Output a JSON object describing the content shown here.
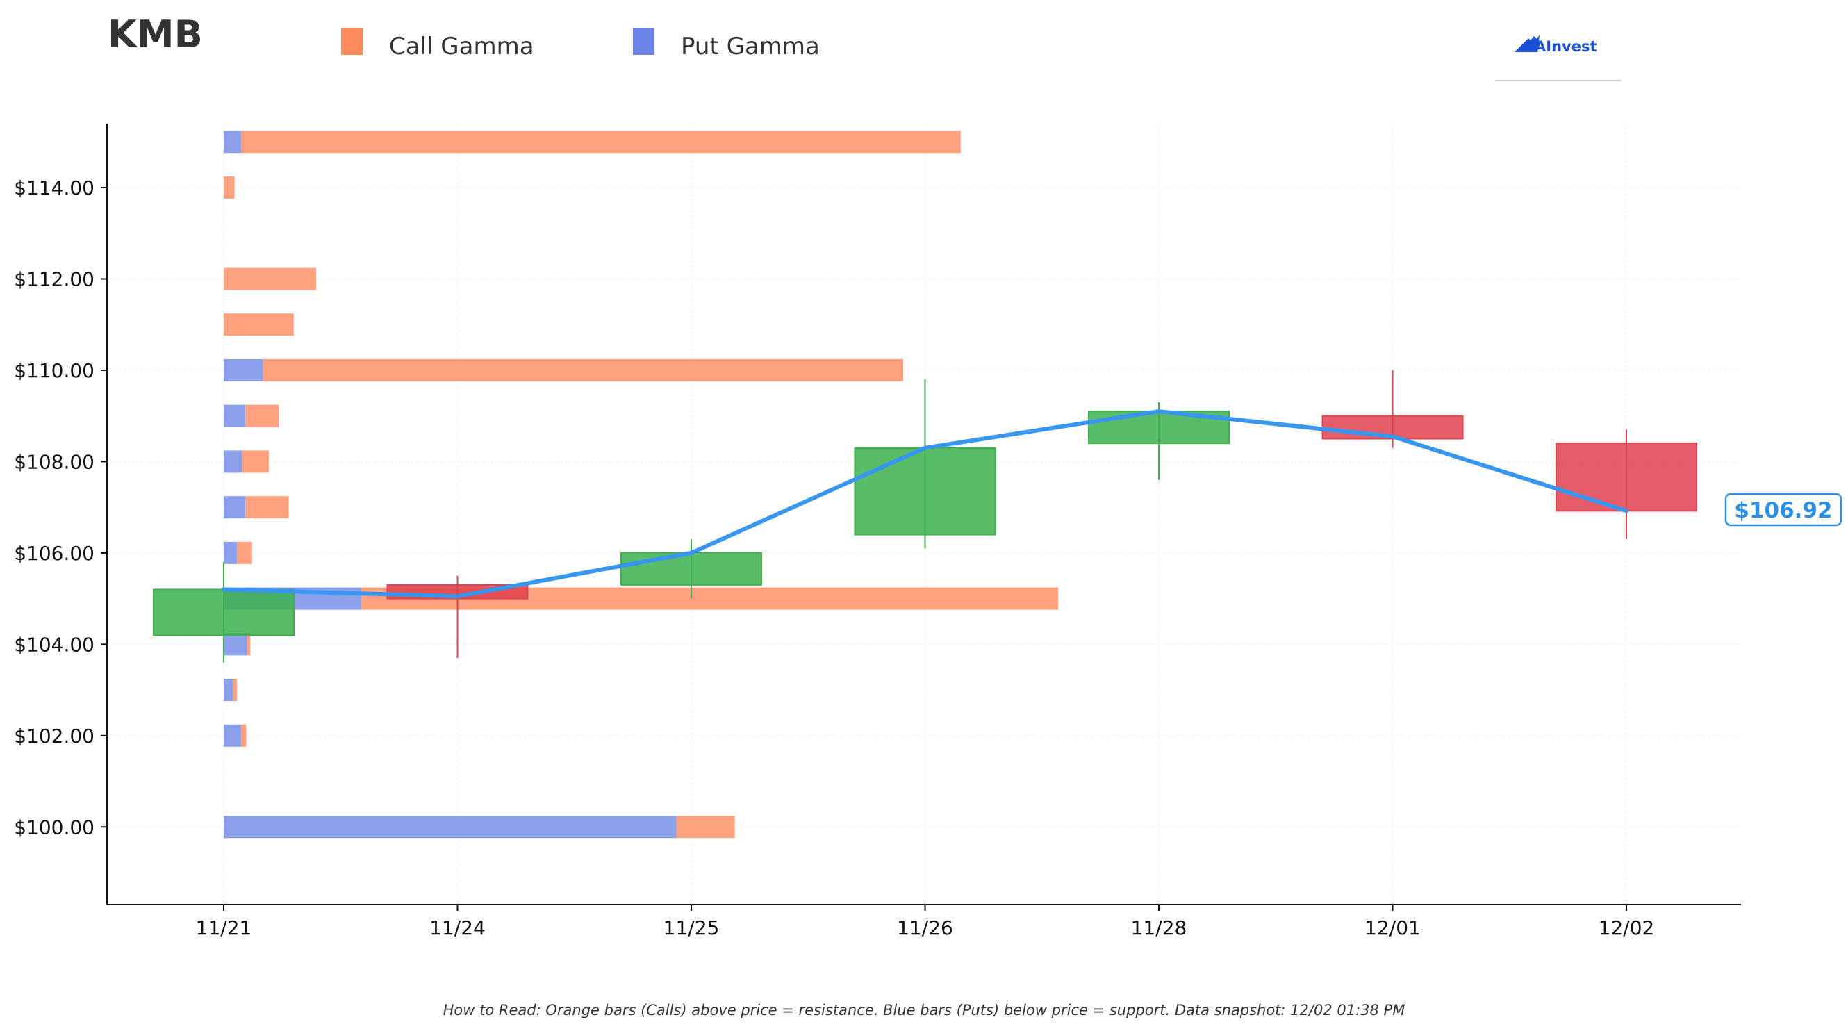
{
  "ticker": "KMB",
  "legend": [
    {
      "label": "Call Gamma",
      "color": "#ff8c5f"
    },
    {
      "label": "Put Gamma",
      "color": "#6b84e6"
    }
  ],
  "logo": {
    "text": "AInvest",
    "icon": "ainvest-logo-icon"
  },
  "footer_note": "How to Read: Orange bars (Calls) above price = resistance. Blue bars (Puts) below price = support. Data snapshot: 12/02 01:38 PM",
  "current_price_label": "$106.92",
  "colors": {
    "up": "#3db04e",
    "down": "#e0414f",
    "close_line": "#3696f0",
    "call": "#ffa07f",
    "put": "#8aa0ea",
    "axis": "#111111",
    "grid": "#eeeeee"
  },
  "chart_data": [
    {
      "type": "candlestick",
      "title": "KMB",
      "categories": [
        "11/21",
        "11/24",
        "11/25",
        "11/26",
        "11/28",
        "12/01",
        "12/02"
      ],
      "ohlc": [
        {
          "date": "11/21",
          "open": 104.2,
          "high": 105.8,
          "low": 103.6,
          "close": 105.2
        },
        {
          "date": "11/24",
          "open": 105.3,
          "high": 105.5,
          "low": 103.7,
          "close": 105.0
        },
        {
          "date": "11/25",
          "open": 105.3,
          "high": 106.3,
          "low": 105.0,
          "close": 106.0
        },
        {
          "date": "11/26",
          "open": 106.4,
          "high": 109.8,
          "low": 106.1,
          "close": 108.3
        },
        {
          "date": "11/28",
          "open": 108.4,
          "high": 109.3,
          "low": 107.6,
          "close": 109.1
        },
        {
          "date": "12/01",
          "open": 109.0,
          "high": 110.0,
          "low": 108.3,
          "close": 108.5
        },
        {
          "date": "12/02",
          "open": 108.4,
          "high": 108.7,
          "low": 106.3,
          "close": 106.92
        }
      ],
      "close_line": {
        "name": "",
        "values": [
          105.2,
          105.05,
          106.0,
          108.3,
          109.1,
          108.55,
          106.92
        ]
      },
      "ylim": [
        98.3,
        115.4
      ],
      "yticks": [
        100,
        102,
        104,
        106,
        108,
        110,
        112,
        114
      ],
      "ytick_labels": [
        "$100.00",
        "$102.00",
        "$104.00",
        "$106.00",
        "$108.00",
        "$110.00",
        "$112.00",
        "$114.00"
      ],
      "grid": true,
      "last_price_label": "$106.92"
    },
    {
      "type": "bar",
      "orientation": "horizontal",
      "stacked": true,
      "value_unit": "relative gamma exposure (0-1 of widest bar)",
      "strikes": [
        115,
        114,
        112,
        111,
        110,
        109,
        108,
        107,
        106,
        105,
        104,
        103,
        102,
        100
      ],
      "series": [
        {
          "name": "Put Gamma",
          "values": [
            0.021,
            0,
            0,
            0,
            0.047,
            0.026,
            0.022,
            0.026,
            0.016,
            0.165,
            0.028,
            0.011,
            0.021,
            0.543
          ]
        },
        {
          "name": "Call Gamma",
          "values": [
            0.863,
            0.013,
            0.111,
            0.084,
            0.768,
            0.04,
            0.032,
            0.052,
            0.018,
            0.836,
            0.004,
            0.005,
            0.006,
            0.07
          ]
        }
      ]
    }
  ]
}
